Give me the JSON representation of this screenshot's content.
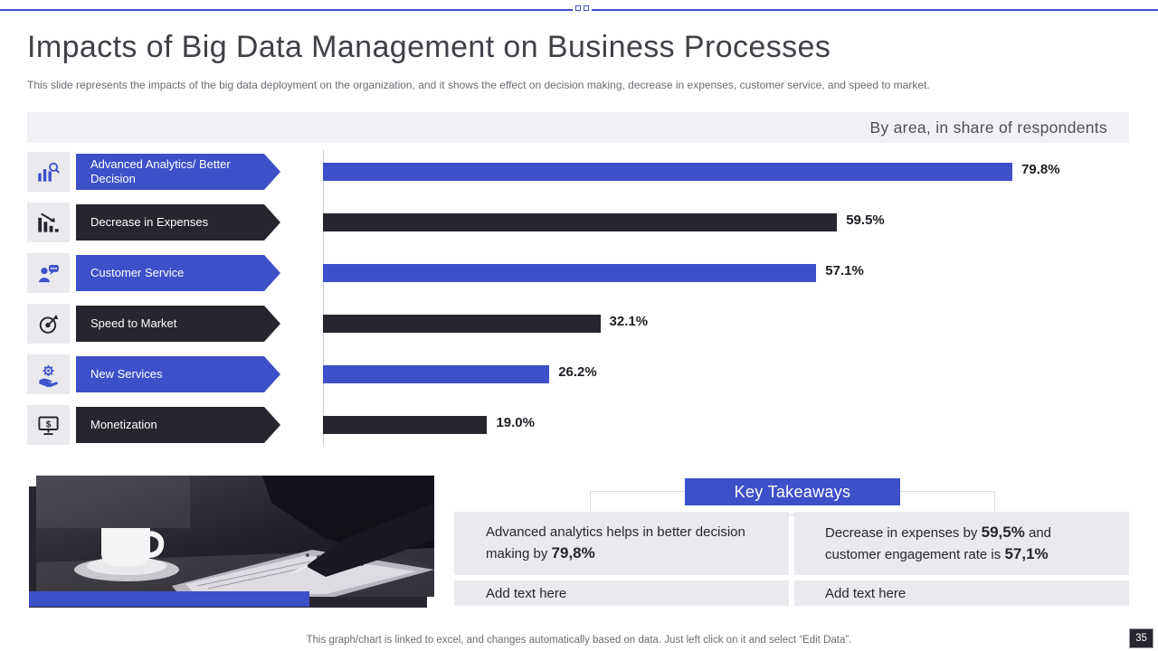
{
  "slide": {
    "title": "Impacts of Big Data Management on Business Processes",
    "subtitle": "This slide represents the impacts of the big data deployment on the organization, and it shows the effect on decision making, decrease in expenses, customer service, and speed to market.",
    "chart_caption": "By area, in share of respondents",
    "footer_note": "This graph/chart is linked to excel,  and changes automatically based on data. Just left click on it and select “Edit Data”.",
    "page_number": "35"
  },
  "colors": {
    "accent_blue": "#3D50C8",
    "dark": "#26262E",
    "light_box": "#E9E9EE",
    "caption_bg": "#F1F1F5"
  },
  "chart_data": {
    "type": "bar",
    "orientation": "horizontal",
    "title": "By area, in share of respondents",
    "categories": [
      "Advanced Analytics/ Better Decision",
      "Decrease in Expenses",
      "Customer Service",
      "Speed to Market",
      "New Services",
      "Monetization"
    ],
    "values": [
      79.8,
      59.5,
      57.1,
      32.1,
      26.2,
      19.0
    ],
    "value_labels": [
      "79.8%",
      "59.5%",
      "57.1%",
      "32.1%",
      "26.2%",
      "19.0%"
    ],
    "bar_colors": [
      "#3D50C8",
      "#26262E",
      "#3D50C8",
      "#26262E",
      "#3D50C8",
      "#26262E"
    ],
    "icons": [
      "advanced-analytics-icon",
      "decrease-expenses-icon",
      "customer-service-icon",
      "speed-to-market-icon",
      "new-services-icon",
      "monetization-icon"
    ],
    "xlim": [
      0,
      100
    ],
    "grid": false,
    "legend": false
  },
  "takeaways": {
    "header": "Key Takeaways",
    "items": [
      {
        "parts": [
          {
            "text": "Advanced analytics helps in better decision making by ",
            "bold": false
          },
          {
            "text": "79,8%",
            "bold": true
          }
        ]
      },
      {
        "parts": [
          {
            "text": "Decrease in expenses by ",
            "bold": false
          },
          {
            "text": "59,5%",
            "bold": true
          },
          {
            "text": " and customer engagement rate is ",
            "bold": false
          },
          {
            "text": "57,1%",
            "bold": true
          }
        ]
      }
    ],
    "placeholders": [
      "Add text here",
      "Add text here"
    ]
  }
}
